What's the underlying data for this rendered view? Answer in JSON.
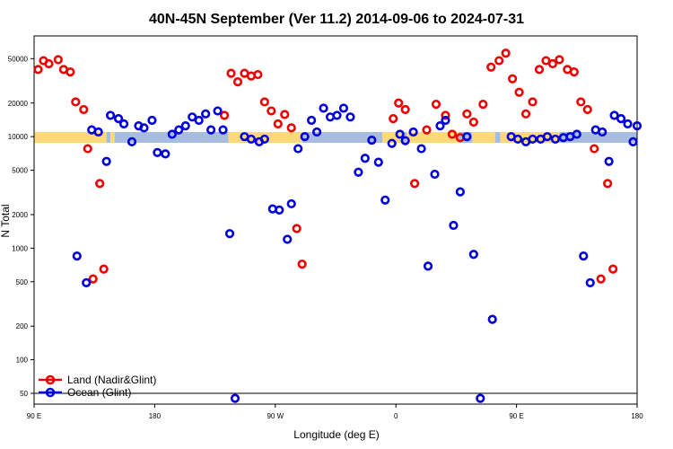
{
  "chart_data": {
    "type": "scatter",
    "title": "40N-45N September (Ver 11.2)   2014-09-06 to 2024-07-31",
    "xlabel": "Longitude (deg E)",
    "ylabel": "N Total",
    "x_ticks": [
      {
        "value": 90,
        "label": "90 E"
      },
      {
        "value": 180,
        "label": "180"
      },
      {
        "value": 270,
        "label": "90 W"
      },
      {
        "value": 360,
        "label": "0"
      },
      {
        "value": 450,
        "label": "90 E"
      },
      {
        "value": 540,
        "label": "180"
      }
    ],
    "y_scale": "log",
    "y_ticks": [
      50,
      100,
      200,
      500,
      1000,
      2000,
      5000,
      10000,
      20000,
      50000
    ],
    "xlim": [
      90,
      540
    ],
    "ylim": [
      40,
      80000
    ],
    "reference_line_y": 50,
    "band": {
      "y_low": 8800,
      "y_high": 11000,
      "segments": [
        {
          "x0": 90,
          "x1": 144,
          "type": "land"
        },
        {
          "x0": 144,
          "x1": 147,
          "type": "ocean"
        },
        {
          "x0": 147,
          "x1": 150,
          "type": "land"
        },
        {
          "x0": 150,
          "x1": 235,
          "type": "ocean"
        },
        {
          "x0": 235,
          "x1": 290,
          "type": "land"
        },
        {
          "x0": 290,
          "x1": 350,
          "type": "ocean"
        },
        {
          "x0": 350,
          "x1": 364,
          "type": "land"
        },
        {
          "x0": 364,
          "x1": 368,
          "type": "ocean"
        },
        {
          "x0": 368,
          "x1": 375,
          "type": "land"
        },
        {
          "x0": 375,
          "x1": 407,
          "type": "land"
        },
        {
          "x0": 407,
          "x1": 417,
          "type": "ocean"
        },
        {
          "x0": 417,
          "x1": 434,
          "type": "land"
        },
        {
          "x0": 434,
          "x1": 438,
          "type": "ocean"
        },
        {
          "x0": 438,
          "x1": 482,
          "type": "land"
        },
        {
          "x0": 482,
          "x1": 540,
          "type": "ocean"
        }
      ],
      "colors": {
        "land": "#ffd878",
        "ocean": "#a6bde0"
      }
    },
    "series": [
      {
        "name": "Land (Nadir&Glint)",
        "color": "#ee0000",
        "points": [
          [
            93,
            40000
          ],
          [
            97,
            48000
          ],
          [
            101,
            45000
          ],
          [
            108,
            49000
          ],
          [
            112,
            40000
          ],
          [
            117,
            38000
          ],
          [
            121,
            20500
          ],
          [
            127,
            17500
          ],
          [
            130,
            7800
          ],
          [
            134,
            530
          ],
          [
            139,
            3800
          ],
          [
            142,
            650
          ],
          [
            232,
            15500
          ],
          [
            237,
            37000
          ],
          [
            242,
            31000
          ],
          [
            247,
            37000
          ],
          [
            252,
            35000
          ],
          [
            257,
            36000
          ],
          [
            262,
            20500
          ],
          [
            267,
            17000
          ],
          [
            272,
            13000
          ],
          [
            277,
            15800
          ],
          [
            282,
            12000
          ],
          [
            286,
            1500
          ],
          [
            290,
            720
          ],
          [
            358,
            14500
          ],
          [
            362,
            20000
          ],
          [
            367,
            17500
          ],
          [
            374,
            3800
          ],
          [
            383,
            11500
          ],
          [
            390,
            19500
          ],
          [
            397,
            15500
          ],
          [
            402,
            10500
          ],
          [
            408,
            9800
          ],
          [
            413,
            16000
          ],
          [
            418,
            13500
          ],
          [
            425,
            19500
          ],
          [
            431,
            42000
          ],
          [
            437,
            48000
          ],
          [
            442,
            56000
          ],
          [
            447,
            33000
          ],
          [
            452,
            25000
          ],
          [
            457,
            16000
          ],
          [
            462,
            20500
          ],
          [
            467,
            40000
          ],
          [
            472,
            48000
          ],
          [
            477,
            45000
          ],
          [
            482,
            49000
          ],
          [
            488,
            40000
          ],
          [
            493,
            38000
          ],
          [
            498,
            20500
          ],
          [
            503,
            17500
          ],
          [
            508,
            7800
          ],
          [
            513,
            530
          ],
          [
            518,
            3800
          ],
          [
            522,
            650
          ]
        ]
      },
      {
        "name": "Ocean (Glint)",
        "color": "#0000dd",
        "points": [
          [
            122,
            850
          ],
          [
            129,
            490
          ],
          [
            133,
            11500
          ],
          [
            138,
            11000
          ],
          [
            144,
            6000
          ],
          [
            147,
            15500
          ],
          [
            153,
            14500
          ],
          [
            157,
            13000
          ],
          [
            163,
            9000
          ],
          [
            168,
            12500
          ],
          [
            172,
            12000
          ],
          [
            178,
            14000
          ],
          [
            182,
            7200
          ],
          [
            188,
            7000
          ],
          [
            193,
            10500
          ],
          [
            198,
            11500
          ],
          [
            203,
            12500
          ],
          [
            208,
            15000
          ],
          [
            213,
            14000
          ],
          [
            218,
            16000
          ],
          [
            222,
            11500
          ],
          [
            227,
            17000
          ],
          [
            231,
            11500
          ],
          [
            236,
            1350
          ],
          [
            240,
            45
          ],
          [
            247,
            10000
          ],
          [
            252,
            9500
          ],
          [
            258,
            9000
          ],
          [
            262,
            9500
          ],
          [
            268,
            2250
          ],
          [
            273,
            2200
          ],
          [
            279,
            1200
          ],
          [
            282,
            2500
          ],
          [
            287,
            7800
          ],
          [
            292,
            10000
          ],
          [
            297,
            14000
          ],
          [
            301,
            11000
          ],
          [
            306,
            18000
          ],
          [
            311,
            15000
          ],
          [
            316,
            15500
          ],
          [
            321,
            18000
          ],
          [
            326,
            15000
          ],
          [
            332,
            4800
          ],
          [
            337,
            6400
          ],
          [
            342,
            9300
          ],
          [
            347,
            5900
          ],
          [
            352,
            2700
          ],
          [
            357,
            8700
          ],
          [
            363,
            10500
          ],
          [
            367,
            9200
          ],
          [
            373,
            11000
          ],
          [
            379,
            7800
          ],
          [
            384,
            690
          ],
          [
            389,
            4600
          ],
          [
            393,
            12500
          ],
          [
            397,
            14000
          ],
          [
            403,
            1600
          ],
          [
            408,
            3200
          ],
          [
            413,
            10000
          ],
          [
            418,
            880
          ],
          [
            423,
            45
          ],
          [
            432,
            230
          ],
          [
            446,
            10000
          ],
          [
            451,
            9500
          ],
          [
            457,
            9000
          ],
          [
            462,
            9500
          ],
          [
            468,
            9500
          ],
          [
            473,
            10000
          ],
          [
            479,
            9500
          ],
          [
            485,
            9800
          ],
          [
            490,
            10000
          ],
          [
            495,
            10500
          ],
          [
            500,
            850
          ],
          [
            505,
            490
          ],
          [
            509,
            11500
          ],
          [
            514,
            11000
          ],
          [
            519,
            6000
          ],
          [
            523,
            15500
          ],
          [
            528,
            14500
          ],
          [
            533,
            13000
          ],
          [
            537,
            9000
          ],
          [
            540,
            12500
          ]
        ]
      }
    ],
    "legend_position": "bottom-left"
  }
}
